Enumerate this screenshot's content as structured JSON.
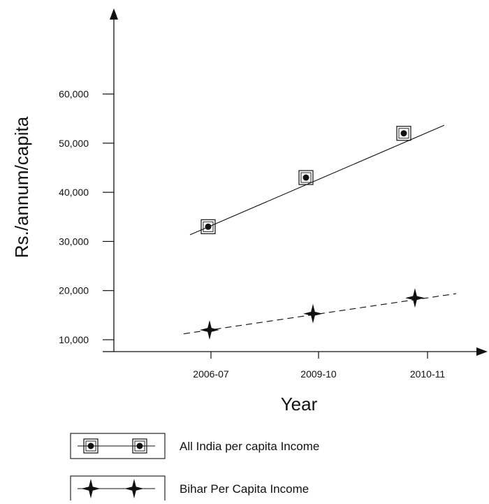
{
  "colors": {
    "ink": "#111111",
    "background": "#ffffff"
  },
  "chart_data": {
    "type": "line",
    "xlabel": "Year",
    "ylabel": "Rs./annum/capita",
    "categories": [
      "2006-07",
      "2009-10",
      "2010-11"
    ],
    "y_ticks": [
      "60,000",
      "50,000",
      "40,000",
      "30,000",
      "20,000",
      "10,000"
    ],
    "ylim": [
      0,
      60000
    ],
    "series": [
      {
        "name": "All India per capita Income",
        "marker": "boxed-dot",
        "line_style": "solid",
        "values": [
          33000,
          43000,
          52000
        ]
      },
      {
        "name": "Bihar Per Capita Income",
        "marker": "four-point-star",
        "line_style": "dashed",
        "values": [
          12000,
          15300,
          18500
        ]
      }
    ]
  }
}
